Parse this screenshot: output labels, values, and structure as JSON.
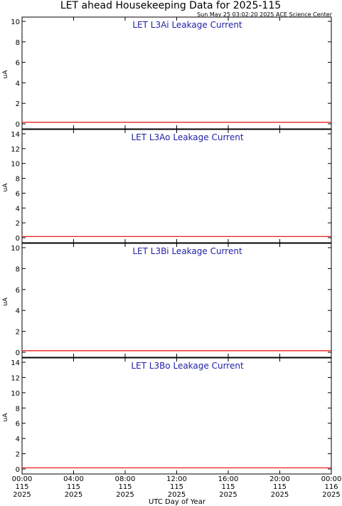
{
  "header": {
    "title": "LET ahead Housekeeping Data for 2025-115",
    "timestamp": "Sun May 25 03:02:20 2025 ACE Science Center"
  },
  "colors": {
    "frame": "#000000",
    "panel_title": "#1f1fa6",
    "series": "#e8201f",
    "background": "#ffffff"
  },
  "chart_data": [
    {
      "type": "line",
      "title": "LET L3Ai Leakage Current",
      "ylabel": "uA",
      "ylim": [
        0,
        10
      ],
      "yticks": [
        0,
        2,
        4,
        6,
        8,
        10
      ],
      "x": [
        0,
        24
      ],
      "series": [
        {
          "values": [
            0.15,
            0.15
          ]
        }
      ]
    },
    {
      "type": "line",
      "title": "LET L3Ao Leakage Current",
      "ylabel": "uA",
      "ylim": [
        0,
        15
      ],
      "yticks": [
        0,
        2,
        4,
        6,
        8,
        10,
        12,
        14
      ],
      "x": [
        0,
        24
      ],
      "series": [
        {
          "values": [
            0.15,
            0.15
          ]
        }
      ]
    },
    {
      "type": "line",
      "title": "LET L3Bi Leakage Current",
      "ylabel": "uA",
      "ylim": [
        0,
        10
      ],
      "yticks": [
        0,
        2,
        4,
        6,
        8,
        10
      ],
      "x": [
        0,
        24
      ],
      "series": [
        {
          "values": [
            0.15,
            0.15
          ]
        }
      ]
    },
    {
      "type": "line",
      "title": "LET L3Bo Leakage Current",
      "ylabel": "uA",
      "ylim": [
        0,
        15
      ],
      "yticks": [
        0,
        2,
        4,
        6,
        8,
        10,
        12,
        14
      ],
      "x": [
        0,
        24
      ],
      "series": [
        {
          "values": [
            0.15,
            0.15
          ]
        }
      ]
    }
  ],
  "x_axis": {
    "label": "UTC Day of Year",
    "xlim": [
      0,
      24
    ],
    "ticks": [
      {
        "hour": 0,
        "time": "00:00",
        "doy": "115",
        "year": "2025"
      },
      {
        "hour": 4,
        "time": "04:00",
        "doy": "115",
        "year": "2025"
      },
      {
        "hour": 8,
        "time": "08:00",
        "doy": "115",
        "year": "2025"
      },
      {
        "hour": 12,
        "time": "12:00",
        "doy": "115",
        "year": "2025"
      },
      {
        "hour": 16,
        "time": "16:00",
        "doy": "115",
        "year": "2025"
      },
      {
        "hour": 20,
        "time": "20:00",
        "doy": "115",
        "year": "2025"
      },
      {
        "hour": 24,
        "time": "00:00",
        "doy": "116",
        "year": "2025"
      }
    ]
  }
}
